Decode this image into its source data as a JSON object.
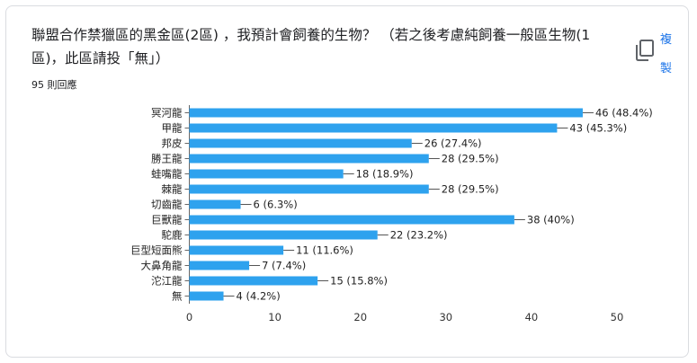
{
  "question": {
    "title": "聯盟合作禁獵區的黑金區(2區) ，我預計會飼養的生物？ （若之後考慮純飼養一般區生物(1區)，此區請投「無」）",
    "response_count": "95 則回應"
  },
  "toolbar": {
    "copy_label": "複製",
    "copy_icon": "copy-icon"
  },
  "colors": {
    "bar": "#2ea2ee",
    "axis": "#666666",
    "grid": "#ffffff",
    "accent": "#1a73e8"
  },
  "chart_data": {
    "type": "bar",
    "orientation": "horizontal",
    "categories": [
      "冥河龍",
      "甲龍",
      "邦皮",
      "勝王龍",
      "蛙嘴龍",
      "棘龍",
      "切齒龍",
      "巨獸龍",
      "駝鹿",
      "巨型短面熊",
      "大鼻角龍",
      "沱江龍",
      "無"
    ],
    "values": [
      46,
      43,
      26,
      28,
      18,
      28,
      6,
      38,
      22,
      11,
      7,
      15,
      4
    ],
    "data_labels": [
      "46 (48.4%)",
      "43 (45.3%)",
      "26 (27.4%)",
      "28 (29.5%)",
      "18 (18.9%)",
      "28 (29.5%)",
      "6 (6.3%)",
      "38 (40%)",
      "22 (23.2%)",
      "11 (11.6%)",
      "7 (7.4%)",
      "15 (15.8%)",
      "4 (4.2%)"
    ],
    "x_ticks": [
      "0",
      "10",
      "20",
      "30",
      "40",
      "50"
    ],
    "xlim": [
      0,
      50
    ],
    "title": "",
    "xlabel": "",
    "ylabel": "",
    "grid": false,
    "legend": "none"
  }
}
